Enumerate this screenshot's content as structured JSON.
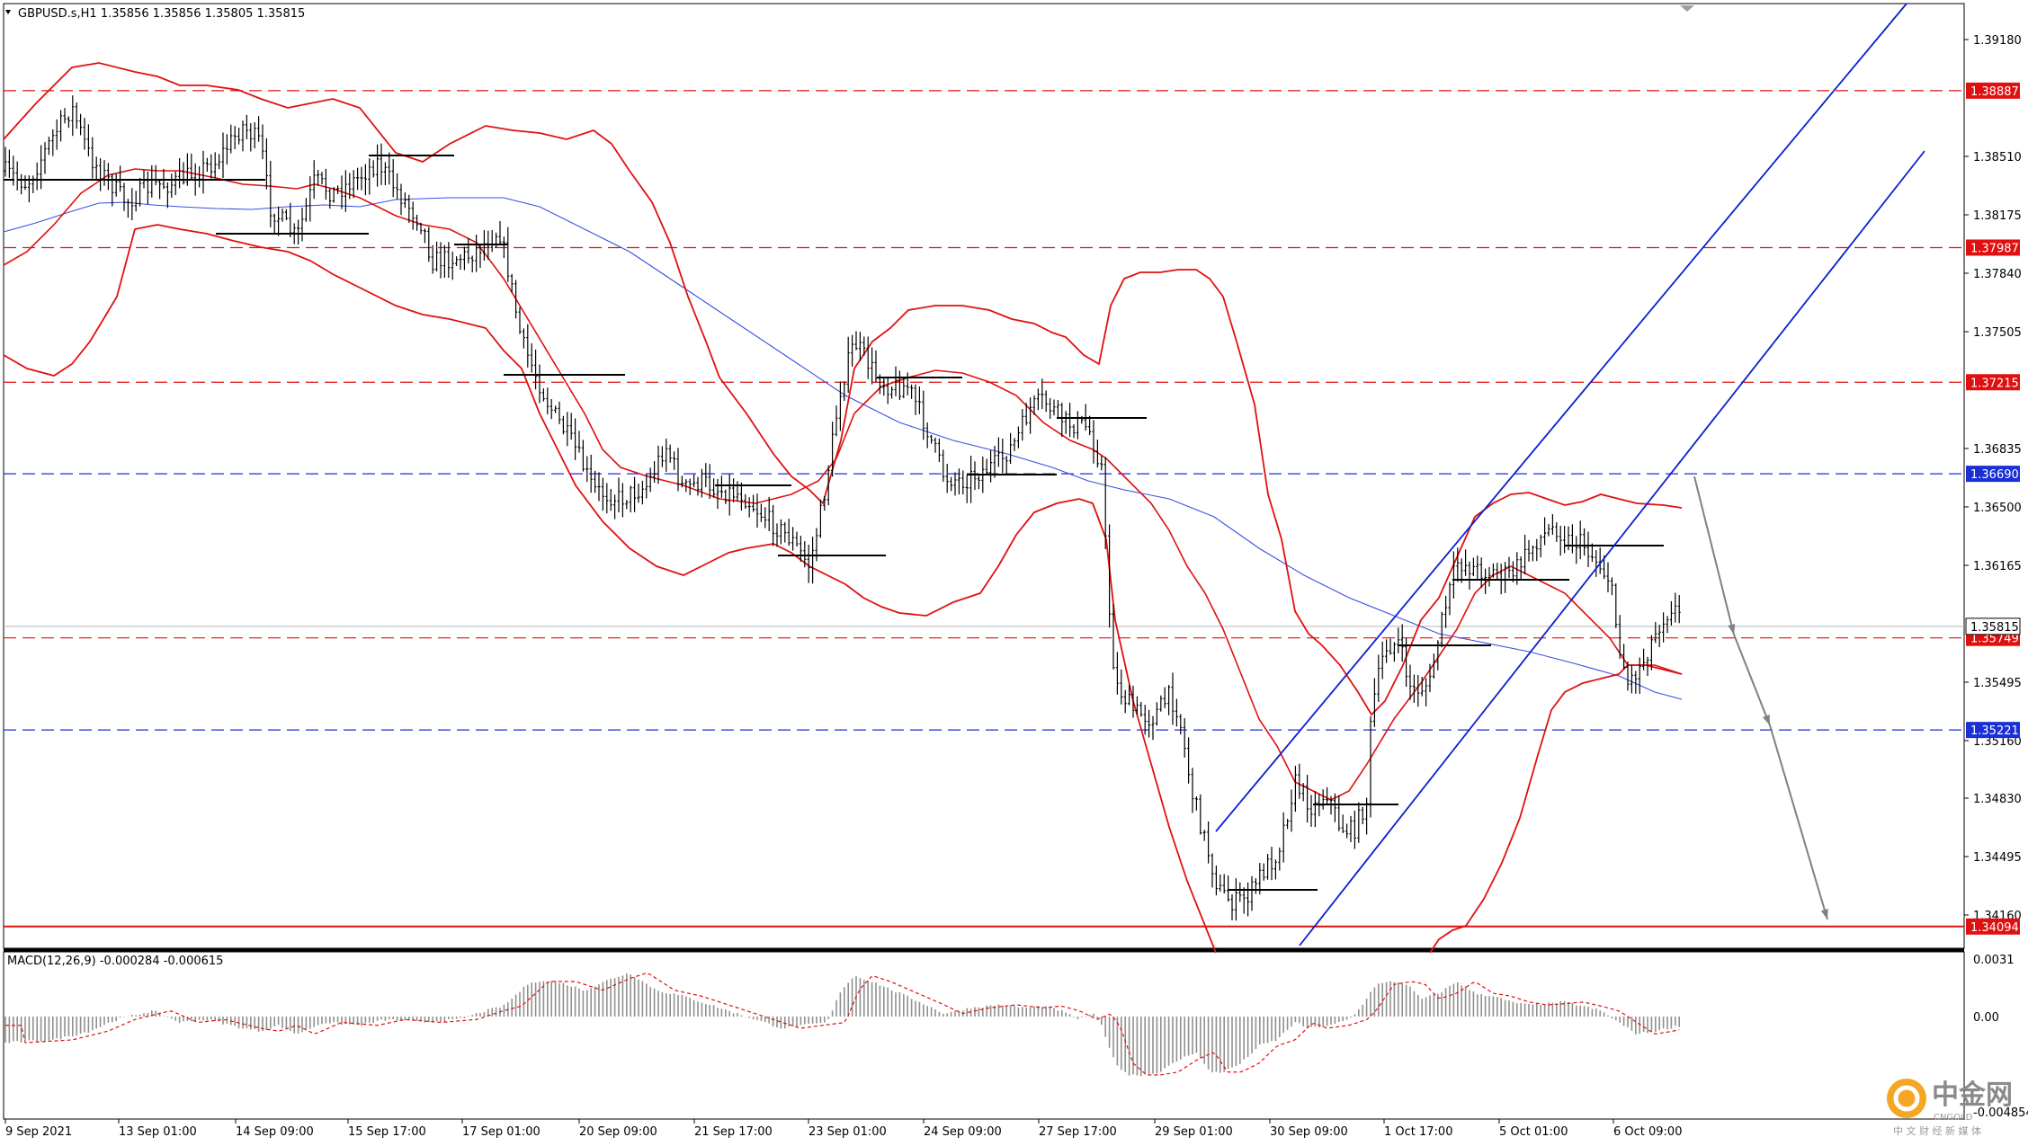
{
  "header": {
    "symbol_line": "GBPUSD.s,H1  1.35856 1.35856 1.35805 1.35815"
  },
  "chart_data": {
    "type": "candlestick",
    "timeframe": "H1",
    "symbol": "GBPUSD.s",
    "ohlc_last": {
      "open": 1.35856,
      "high": 1.35856,
      "low": 1.35805,
      "close": 1.35815
    },
    "price_axis_ticks": [
      "1.39180",
      "1.38510",
      "1.38175",
      "1.37840",
      "1.37505",
      "1.36835",
      "1.36500",
      "1.36165",
      "1.35495",
      "1.35160",
      "1.34830",
      "1.34495",
      "1.34160"
    ],
    "time_axis_labels": [
      "9 Sep 2021",
      "13 Sep 01:00",
      "14 Sep 09:00",
      "15 Sep 17:00",
      "17 Sep 01:00",
      "20 Sep 09:00",
      "21 Sep 17:00",
      "23 Sep 01:00",
      "24 Sep 09:00",
      "27 Sep 17:00",
      "29 Sep 01:00",
      "30 Sep 09:00",
      "1 Oct 17:00",
      "5 Oct 01:00",
      "6 Oct 09:00"
    ],
    "horizontal_levels": [
      {
        "label": "1.38887",
        "value": 1.38887,
        "color": "#e01010",
        "style": "dashed"
      },
      {
        "label": "1.37987",
        "value": 1.37987,
        "color": "#e01010",
        "style": "dashed"
      },
      {
        "label": "1.37215",
        "value": 1.37215,
        "color": "#e01010",
        "style": "dashed"
      },
      {
        "label": "1.36690",
        "value": 1.3669,
        "color": "#1a2fd6",
        "style": "dashed"
      },
      {
        "label": "1.35749",
        "value": 1.35749,
        "color": "#e01010",
        "style": "dashed"
      },
      {
        "label": "1.35221",
        "value": 1.35221,
        "color": "#1a2fd6",
        "style": "dashed"
      },
      {
        "label": "1.34094",
        "value": 1.34094,
        "color": "#e01010",
        "style": "solid"
      }
    ],
    "current_price": {
      "label": "1.35815",
      "value": 1.35815
    },
    "indicators": [
      "Bollinger Bands",
      "Moving Average",
      "Ascending channel",
      "MACD(12,26,9)"
    ],
    "projection": "downward arrows to 1.34094"
  },
  "macd": {
    "label": "MACD(12,26,9) -0.000284 -0.000615",
    "ticks": [
      "0.0031",
      "0.00",
      "-0.004854"
    ]
  },
  "watermark": {
    "text": "中金网",
    "sub": "CNGOLD",
    "tagline": "中 文 财 经 新 媒 体"
  },
  "colors": {
    "bollinger": "#e01010",
    "ma": "#3b4fe0",
    "channel": "#0b1fcf",
    "candle": "#000000",
    "macd_signal": "#e01010",
    "macd_hist": "#909090",
    "axis_tag_red": "#e01010",
    "axis_tag_blue": "#1a2fd6"
  }
}
